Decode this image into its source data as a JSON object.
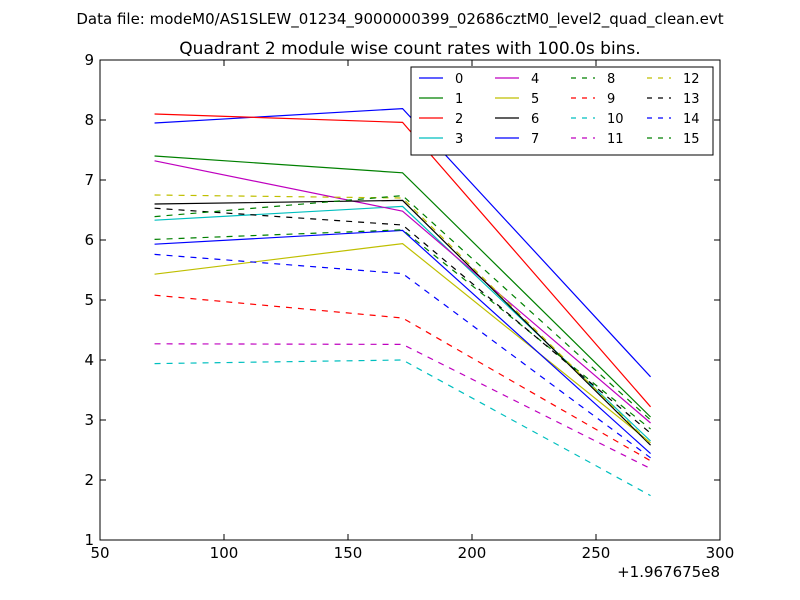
{
  "suptitle": "Data file: modeM0/AS1SLEW_01234_9000000399_02686cztM0_level2_quad_clean.evt",
  "chart_data": {
    "type": "line",
    "title": "Quadrant 2 module wise count rates with 100.0s bins.",
    "xlabel": "",
    "ylabel": "",
    "xlim": [
      50,
      300
    ],
    "ylim": [
      1,
      9
    ],
    "x_offset_label": "+1.967675e8",
    "xticks": [
      50,
      100,
      150,
      200,
      250,
      300
    ],
    "yticks": [
      1,
      2,
      3,
      4,
      5,
      6,
      7,
      8,
      9
    ],
    "grid": false,
    "legend_position": "top-right",
    "x": [
      72,
      172,
      272
    ],
    "series": [
      {
        "name": "0",
        "color": "#0000ff",
        "dash": "solid",
        "values": [
          7.95,
          8.19,
          3.72
        ]
      },
      {
        "name": "1",
        "color": "#008000",
        "dash": "solid",
        "values": [
          7.4,
          7.12,
          3.05
        ]
      },
      {
        "name": "2",
        "color": "#ff0000",
        "dash": "solid",
        "values": [
          8.1,
          7.96,
          3.22
        ]
      },
      {
        "name": "3",
        "color": "#00bfbf",
        "dash": "solid",
        "values": [
          6.33,
          6.56,
          2.65
        ]
      },
      {
        "name": "4",
        "color": "#bf00bf",
        "dash": "solid",
        "values": [
          7.32,
          6.48,
          2.95
        ]
      },
      {
        "name": "5",
        "color": "#bfbf00",
        "dash": "solid",
        "values": [
          5.43,
          5.94,
          2.62
        ]
      },
      {
        "name": "6",
        "color": "#000000",
        "dash": "solid",
        "values": [
          6.6,
          6.66,
          2.58
        ]
      },
      {
        "name": "7",
        "color": "#0000ff",
        "dash": "solid",
        "values": [
          5.93,
          6.16,
          2.44
        ]
      },
      {
        "name": "8",
        "color": "#008000",
        "dash": "dashed",
        "values": [
          6.01,
          6.17,
          2.85
        ]
      },
      {
        "name": "9",
        "color": "#ff0000",
        "dash": "dashed",
        "values": [
          5.08,
          4.7,
          2.32
        ]
      },
      {
        "name": "10",
        "color": "#00bfbf",
        "dash": "dashed",
        "values": [
          3.94,
          4.0,
          1.74
        ]
      },
      {
        "name": "11",
        "color": "#bf00bf",
        "dash": "dashed",
        "values": [
          4.27,
          4.26,
          2.19
        ]
      },
      {
        "name": "12",
        "color": "#bfbf00",
        "dash": "dashed",
        "values": [
          6.75,
          6.7,
          2.6
        ]
      },
      {
        "name": "13",
        "color": "#000000",
        "dash": "dashed",
        "values": [
          6.53,
          6.25,
          2.78
        ]
      },
      {
        "name": "14",
        "color": "#0000ff",
        "dash": "dashed",
        "values": [
          5.76,
          5.44,
          2.37
        ]
      },
      {
        "name": "15",
        "color": "#008000",
        "dash": "dashed",
        "values": [
          6.39,
          6.74,
          3.0
        ]
      }
    ]
  }
}
